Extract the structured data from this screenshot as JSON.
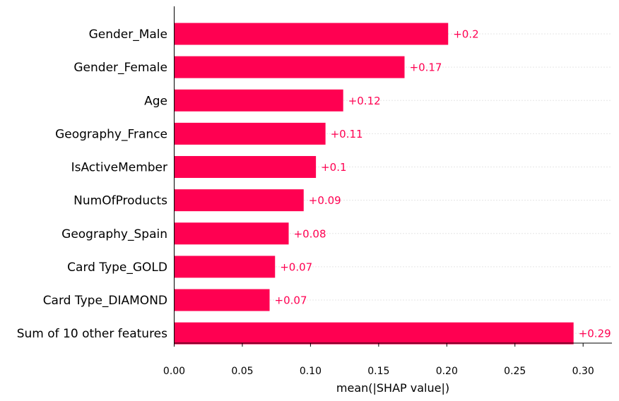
{
  "chart_data": {
    "type": "bar",
    "orientation": "horizontal",
    "categories": [
      "Gender_Male",
      "Gender_Female",
      "Age",
      "Geography_France",
      "IsActiveMember",
      "NumOfProducts",
      "Geography_Spain",
      "Card Type_GOLD",
      "Card Type_DIAMOND",
      "Sum of 10 other features"
    ],
    "values": [
      0.201,
      0.169,
      0.124,
      0.111,
      0.104,
      0.095,
      0.084,
      0.074,
      0.07,
      0.293
    ],
    "value_labels": [
      "+0.2",
      "+0.17",
      "+0.12",
      "+0.11",
      "+0.1",
      "+0.09",
      "+0.08",
      "+0.07",
      "+0.07",
      "+0.29"
    ],
    "xlabel": "mean(|SHAP value|)",
    "ylabel": "",
    "xlim": [
      0.0,
      0.322
    ],
    "xticks": [
      0.0,
      0.05,
      0.1,
      0.15,
      0.2,
      0.25,
      0.3
    ],
    "xtick_labels": [
      "0.00",
      "0.05",
      "0.10",
      "0.15",
      "0.20",
      "0.25",
      "0.30"
    ],
    "grid": "dotted horizontal guide lines",
    "bar_color": "#ff0051",
    "label_color": "#ff0051",
    "guide_color": "#cccccc"
  }
}
